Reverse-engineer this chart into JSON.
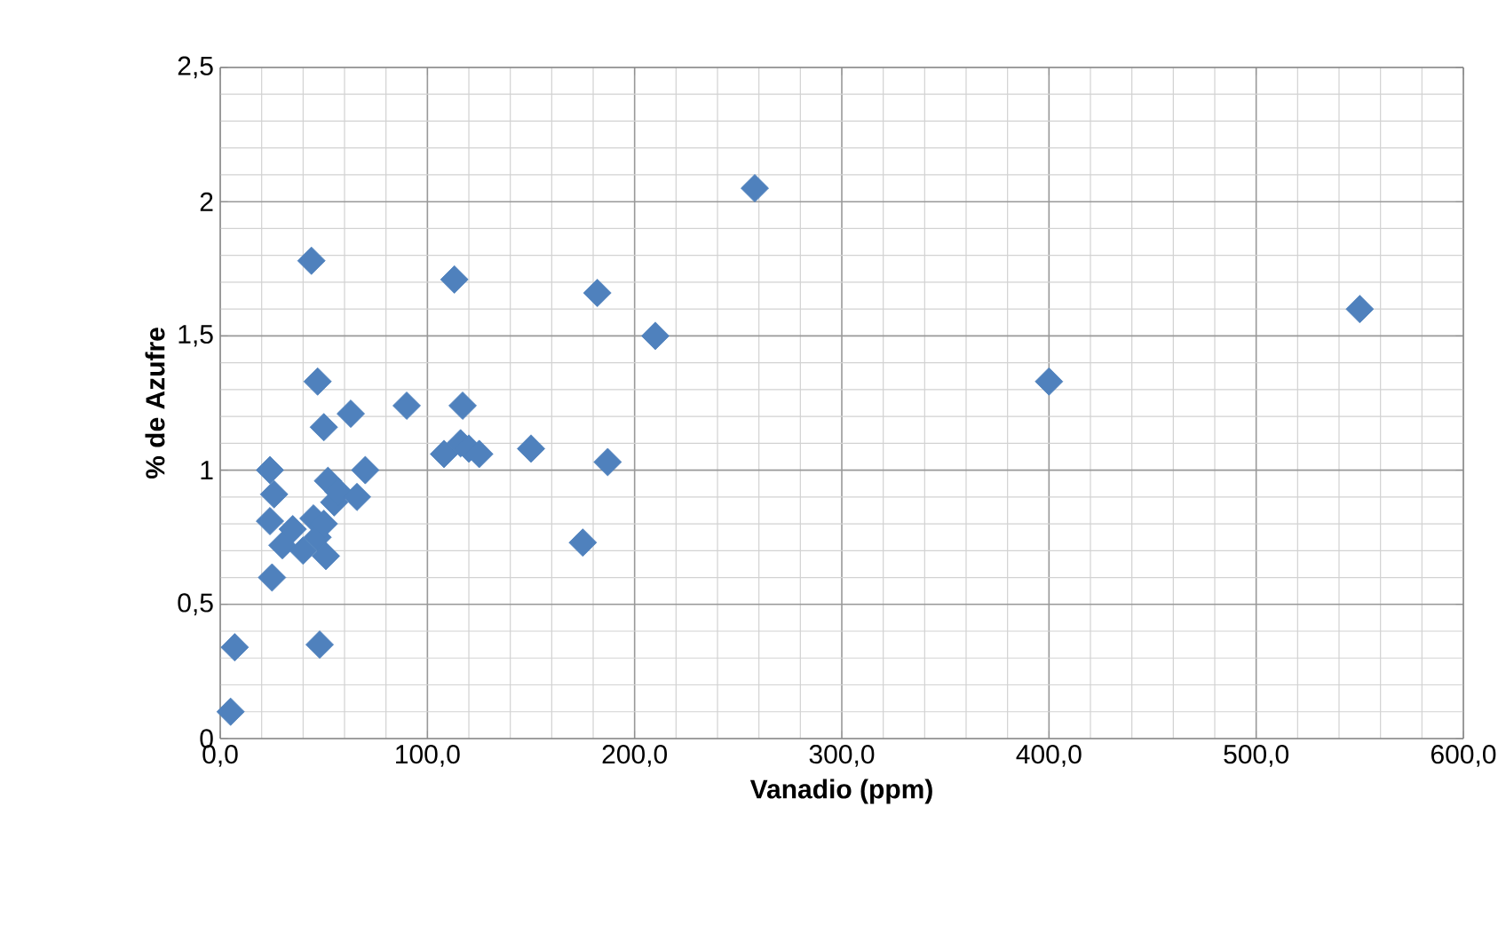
{
  "chart_data": {
    "type": "scatter",
    "xlabel": "Vanadio (ppm)",
    "ylabel": "% de  Azufre",
    "x": [
      5,
      7,
      25,
      24,
      24,
      26,
      30,
      35,
      40,
      45,
      47,
      48,
      44,
      47,
      50,
      52,
      50,
      51,
      55,
      57,
      63,
      66,
      70,
      90,
      108,
      113,
      116,
      117,
      120,
      125,
      150,
      175,
      182,
      187,
      210,
      258,
      400,
      550
    ],
    "values": [
      0.1,
      0.34,
      0.6,
      0.81,
      1.0,
      0.91,
      0.72,
      0.78,
      0.7,
      0.82,
      0.75,
      0.35,
      1.78,
      1.33,
      1.16,
      0.96,
      0.8,
      0.68,
      0.88,
      0.92,
      1.21,
      0.9,
      1.0,
      1.24,
      1.06,
      1.71,
      1.1,
      1.24,
      1.08,
      1.06,
      1.08,
      0.73,
      1.66,
      1.03,
      1.5,
      2.05,
      1.33,
      1.6
    ],
    "color": "#4f81bd",
    "marker": "diamond",
    "grid": true,
    "xlim": [
      0,
      600
    ],
    "ylim": [
      0,
      2.5
    ],
    "xticks": [
      {
        "value": 0,
        "label": "0,0"
      },
      {
        "value": 100,
        "label": "100,0"
      },
      {
        "value": 200,
        "label": "200,0"
      },
      {
        "value": 300,
        "label": "300,0"
      },
      {
        "value": 400,
        "label": "400,0"
      },
      {
        "value": 500,
        "label": "500,0"
      },
      {
        "value": 600,
        "label": "600,0"
      }
    ],
    "yticks": [
      0,
      {
        "value": 0.5,
        "label": "0,5"
      },
      1,
      {
        "value": 1.5,
        "label": "1,5"
      },
      2,
      {
        "value": 2.5,
        "label": "2,5"
      }
    ]
  }
}
